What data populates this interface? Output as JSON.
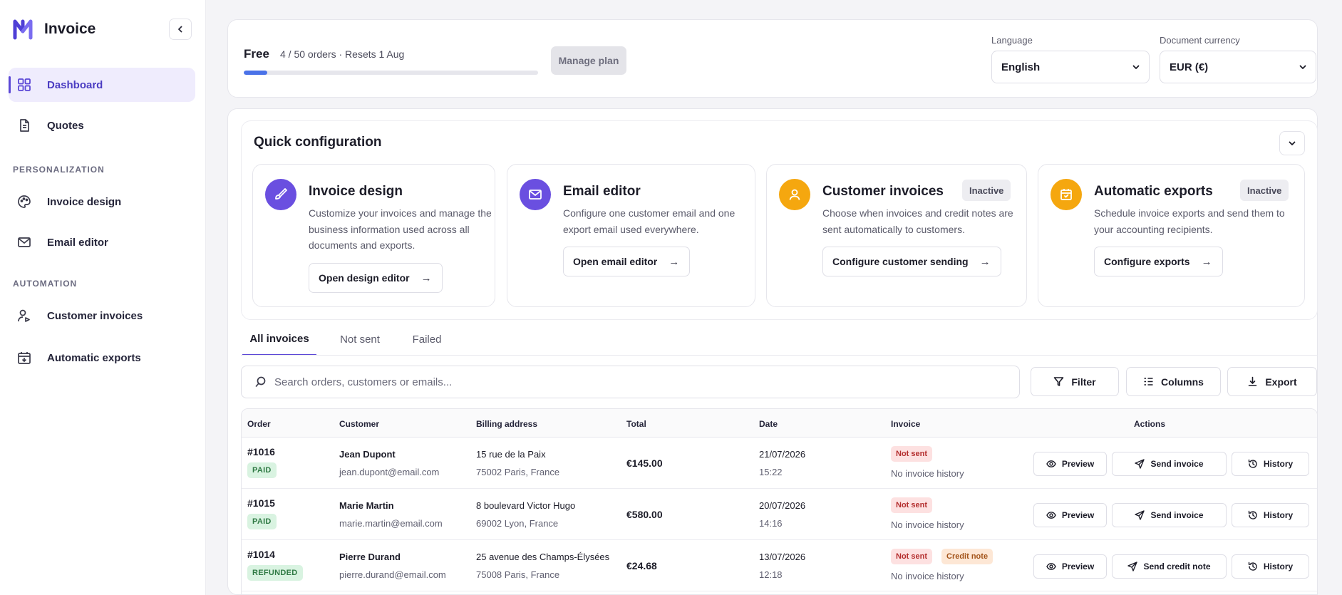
{
  "app": {
    "name": "Invoice"
  },
  "sidebar": {
    "items": [
      {
        "label": "Dashboard",
        "icon": "dashboard-grid-icon",
        "active": true
      },
      {
        "label": "Quotes",
        "icon": "document-icon"
      }
    ],
    "sections": [
      {
        "title": "PERSONALIZATION",
        "items": [
          {
            "label": "Invoice design",
            "icon": "palette-icon"
          },
          {
            "label": "Email editor",
            "icon": "mail-icon"
          }
        ]
      },
      {
        "title": "AUTOMATION",
        "items": [
          {
            "label": "Customer invoices",
            "icon": "user-send-icon"
          },
          {
            "label": "Automatic exports",
            "icon": "calendar-export-icon"
          }
        ]
      }
    ]
  },
  "plan": {
    "name": "Free",
    "usage": "4 / 50 orders · Resets 1 Aug",
    "usage_fraction": 0.08,
    "manage_label": "Manage plan",
    "accent": "#4a72e8"
  },
  "settings": {
    "language_label": "Language",
    "language_value": "English",
    "currency_label": "Document currency",
    "currency_value": "EUR (€)"
  },
  "quick_config": {
    "title": "Quick configuration",
    "cards": [
      {
        "title": "Invoice design",
        "desc": [
          "Customize your invoices and manage the",
          "business information used across all",
          "documents and exports."
        ],
        "button": "Open design editor",
        "badge": ""
      },
      {
        "title": "Email editor",
        "desc": [
          "Configure one customer email and one",
          "export email used everywhere."
        ],
        "button": "Open email editor",
        "badge": ""
      },
      {
        "title": "Customer invoices",
        "desc": [
          "Choose when invoices and credit notes are",
          "sent automatically to customers."
        ],
        "button": "Configure customer sending",
        "badge": "Inactive"
      },
      {
        "title": "Automatic exports",
        "desc": [
          "Schedule invoice exports and send them to",
          "your accounting recipients."
        ],
        "button": "Configure exports",
        "badge": "Inactive"
      }
    ]
  },
  "tabs": [
    "All invoices",
    "Not sent",
    "Failed"
  ],
  "toolbar": {
    "search_placeholder": "Search orders, customers or emails...",
    "filter": "Filter",
    "columns": "Columns",
    "export": "Export"
  },
  "table": {
    "headers": [
      "Order",
      "Customer",
      "Billing address",
      "Total",
      "Date",
      "Invoice",
      "Actions"
    ],
    "rows": [
      {
        "order": "#1016",
        "status": "PAID",
        "name": "Jean Dupont",
        "email": "jean.dupont@email.com",
        "addr1": "15 rue de la Paix",
        "addr2": "75002 Paris, France",
        "total": "€145.00",
        "date": "21/07/2026",
        "time": "15:22",
        "tags": [
          "Not sent"
        ],
        "history": "No invoice history",
        "send": "Send invoice"
      },
      {
        "order": "#1015",
        "status": "PAID",
        "name": "Marie Martin",
        "email": "marie.martin@email.com",
        "addr1": "8 boulevard Victor Hugo",
        "addr2": "69002 Lyon, France",
        "total": "€580.00",
        "date": "20/07/2026",
        "time": "14:16",
        "tags": [
          "Not sent"
        ],
        "history": "No invoice history",
        "send": "Send invoice"
      },
      {
        "order": "#1014",
        "status": "REFUNDED",
        "name": "Pierre Durand",
        "email": "pierre.durand@email.com",
        "addr1": "25 avenue des Champs-Élysées",
        "addr2": "75008 Paris, France",
        "total": "€24.68",
        "date": "13/07/2026",
        "time": "12:18",
        "tags": [
          "Not sent",
          "Credit note"
        ],
        "history": "No invoice history",
        "send": "Send credit note"
      }
    ],
    "preview": "Preview",
    "history_btn": "History"
  }
}
